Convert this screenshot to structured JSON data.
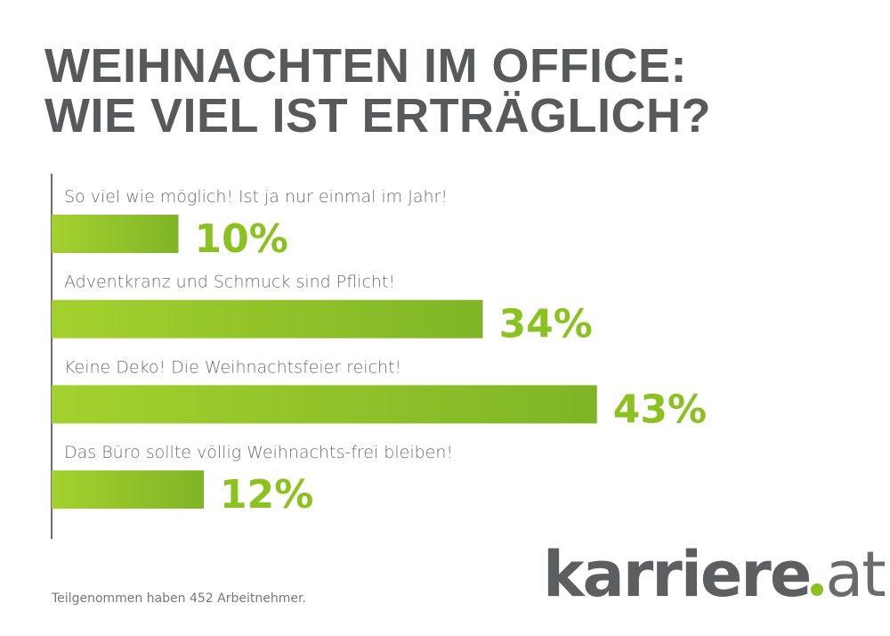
{
  "chart_data": {
    "type": "bar",
    "orientation": "horizontal",
    "title": "WEIHNACHTEN IM OFFICE: WIE VIEL IST ERTRÄGLICH?",
    "title_lines": [
      "WEIHNACHTEN IM OFFICE:",
      "WIE VIEL IST ERTRÄGLICH?"
    ],
    "categories": [
      "So viel wie möglich! Ist ja nur einmal im Jahr!",
      "Adventkranz und Schmuck sind Pflicht!",
      "Keine Deko! Die Weihnachtsfeier reicht!",
      "Das Büro sollte völlig Weihnachts-frei bleiben!"
    ],
    "values": [
      10,
      34,
      43,
      12
    ],
    "value_labels": [
      "10%",
      "34%",
      "43%",
      "12%"
    ],
    "unit": "%",
    "xlim": [
      0,
      50
    ],
    "grid": false,
    "colors": {
      "bar_start": "#a3d12e",
      "bar_end": "#7fb526",
      "value": "#8cc21f",
      "title": "#58595b",
      "axis": "#6d6e70"
    }
  },
  "footnote": "Teilgenommen haben 452 Arbeitnehmer.",
  "logo": {
    "text": "karriere.at",
    "main": "karriere",
    "suffix": "at",
    "dot_color": "#8cc21f"
  }
}
